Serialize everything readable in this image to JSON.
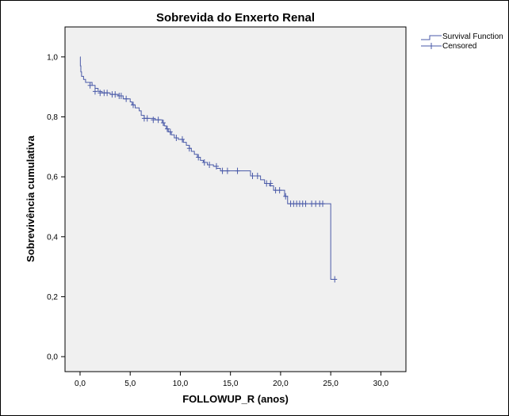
{
  "chart_data": {
    "type": "line",
    "title": "Sobrevida do Enxerto Renal",
    "xlabel": "FOLLOWUP_R (anos)",
    "ylabel": "Sobrevivência cumulativa",
    "xlim": [
      -1.5,
      32.5
    ],
    "ylim": [
      -0.05,
      1.1
    ],
    "x_ticks": [
      0,
      5,
      10,
      15,
      20,
      25,
      30
    ],
    "x_tick_labels": [
      "0,0",
      "5,0",
      "10,0",
      "15,0",
      "20,0",
      "25,0",
      "30,0"
    ],
    "y_ticks": [
      0,
      0.2,
      0.4,
      0.6,
      0.8,
      1.0
    ],
    "y_tick_labels": [
      "0,0",
      "0,2",
      "0,4",
      "0,6",
      "0,8",
      "1,0"
    ],
    "legend": [
      "Survival Function",
      "Censored"
    ],
    "legend_position": "top-right outside",
    "grid": false,
    "colors": {
      "line": "#4a5aa8",
      "plot_bg": "#f0f0f0"
    },
    "series": [
      {
        "name": "Survival Function",
        "steps": [
          [
            0,
            1.0
          ],
          [
            0.03,
            0.97
          ],
          [
            0.08,
            0.95
          ],
          [
            0.15,
            0.935
          ],
          [
            0.35,
            0.925
          ],
          [
            0.55,
            0.915
          ],
          [
            1.2,
            0.905
          ],
          [
            1.5,
            0.895
          ],
          [
            1.8,
            0.885
          ],
          [
            2.2,
            0.88
          ],
          [
            3.0,
            0.875
          ],
          [
            3.8,
            0.87
          ],
          [
            4.3,
            0.86
          ],
          [
            5.0,
            0.85
          ],
          [
            5.2,
            0.84
          ],
          [
            5.5,
            0.83
          ],
          [
            5.9,
            0.82
          ],
          [
            6.1,
            0.805
          ],
          [
            6.4,
            0.795
          ],
          [
            7.5,
            0.79
          ],
          [
            8.2,
            0.78
          ],
          [
            8.4,
            0.77
          ],
          [
            8.6,
            0.76
          ],
          [
            8.8,
            0.75
          ],
          [
            9.1,
            0.74
          ],
          [
            9.4,
            0.73
          ],
          [
            9.8,
            0.725
          ],
          [
            10.3,
            0.715
          ],
          [
            10.6,
            0.705
          ],
          [
            10.9,
            0.695
          ],
          [
            11.1,
            0.685
          ],
          [
            11.4,
            0.675
          ],
          [
            11.7,
            0.665
          ],
          [
            12.0,
            0.655
          ],
          [
            12.3,
            0.648
          ],
          [
            12.7,
            0.64
          ],
          [
            13.3,
            0.635
          ],
          [
            13.6,
            0.628
          ],
          [
            14.0,
            0.62
          ],
          [
            17.0,
            0.603
          ],
          [
            18.0,
            0.59
          ],
          [
            18.4,
            0.578
          ],
          [
            18.9,
            0.57
          ],
          [
            19.3,
            0.555
          ],
          [
            20.4,
            0.535
          ],
          [
            20.7,
            0.51
          ],
          [
            25.0,
            0.258
          ],
          [
            25.4,
            0.258
          ]
        ]
      },
      {
        "name": "Censored",
        "points": [
          [
            1.0,
            0.905
          ],
          [
            1.5,
            0.885
          ],
          [
            2.0,
            0.88
          ],
          [
            2.4,
            0.88
          ],
          [
            2.7,
            0.88
          ],
          [
            3.2,
            0.875
          ],
          [
            3.5,
            0.875
          ],
          [
            3.9,
            0.87
          ],
          [
            4.1,
            0.87
          ],
          [
            4.6,
            0.86
          ],
          [
            5.3,
            0.84
          ],
          [
            6.4,
            0.795
          ],
          [
            6.7,
            0.795
          ],
          [
            7.3,
            0.79
          ],
          [
            7.8,
            0.79
          ],
          [
            8.3,
            0.78
          ],
          [
            8.7,
            0.76
          ],
          [
            9.0,
            0.75
          ],
          [
            9.6,
            0.73
          ],
          [
            10.2,
            0.725
          ],
          [
            10.9,
            0.695
          ],
          [
            11.8,
            0.665
          ],
          [
            12.4,
            0.648
          ],
          [
            12.9,
            0.64
          ],
          [
            13.6,
            0.635
          ],
          [
            14.2,
            0.62
          ],
          [
            14.7,
            0.62
          ],
          [
            15.7,
            0.62
          ],
          [
            17.2,
            0.603
          ],
          [
            17.7,
            0.603
          ],
          [
            18.6,
            0.578
          ],
          [
            19.0,
            0.578
          ],
          [
            19.5,
            0.555
          ],
          [
            19.9,
            0.555
          ],
          [
            20.5,
            0.535
          ],
          [
            21.0,
            0.51
          ],
          [
            21.3,
            0.51
          ],
          [
            21.6,
            0.51
          ],
          [
            21.9,
            0.51
          ],
          [
            22.2,
            0.51
          ],
          [
            22.5,
            0.51
          ],
          [
            23.1,
            0.51
          ],
          [
            23.5,
            0.51
          ],
          [
            23.9,
            0.51
          ],
          [
            24.2,
            0.51
          ],
          [
            25.4,
            0.258
          ]
        ]
      }
    ]
  }
}
